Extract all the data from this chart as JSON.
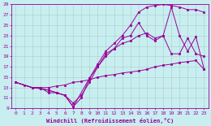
{
  "xlabel": "Windchill (Refroidissement éolien,°C)",
  "background_color": "#c8eef0",
  "line_color": "#990099",
  "grid_color": "#aacccc",
  "xlim": [
    -0.5,
    23.5
  ],
  "ylim": [
    9,
    29
  ],
  "xticks": [
    0,
    1,
    2,
    3,
    4,
    5,
    6,
    7,
    8,
    9,
    10,
    11,
    12,
    13,
    14,
    15,
    16,
    17,
    18,
    19,
    20,
    21,
    22,
    23
  ],
  "yticks": [
    9,
    11,
    13,
    15,
    17,
    19,
    21,
    23,
    25,
    27,
    29
  ],
  "line1_x": [
    0,
    1,
    2,
    3,
    4,
    5,
    6,
    7,
    8,
    9,
    10,
    11,
    12,
    13,
    14,
    15,
    16,
    17,
    18,
    19,
    20,
    21,
    22,
    23
  ],
  "line1_y": [
    14,
    13.5,
    13.0,
    13.0,
    13.0,
    13.3,
    13.5,
    14.0,
    14.2,
    14.5,
    15.0,
    15.3,
    15.5,
    15.8,
    16.0,
    16.2,
    16.5,
    17.0,
    17.3,
    17.5,
    17.8,
    18.0,
    18.2,
    16.5
  ],
  "line2_x": [
    0,
    2,
    3,
    4,
    5,
    6,
    7,
    8,
    9,
    10,
    11,
    12,
    13,
    14,
    15,
    16,
    17,
    18,
    19,
    20,
    21,
    22,
    23
  ],
  "line2_y": [
    14,
    13.0,
    13.0,
    12.0,
    12.0,
    11.5,
    10.0,
    11.5,
    14.0,
    17.0,
    19.0,
    20.5,
    21.5,
    22.0,
    23.0,
    23.5,
    22.5,
    23.0,
    19.5,
    19.5,
    22.5,
    19.5,
    19.0
  ],
  "line3_x": [
    0,
    2,
    3,
    4,
    5,
    6,
    7,
    8,
    9,
    10,
    11,
    12,
    13,
    14,
    15,
    16,
    17,
    18,
    19,
    20,
    21,
    22,
    23
  ],
  "line3_y": [
    14,
    13.0,
    12.8,
    12.5,
    12.0,
    11.5,
    9.3,
    11.0,
    14.8,
    17.0,
    19.5,
    20.5,
    22.5,
    23.0,
    25.5,
    23.0,
    22.0,
    23.0,
    28.5,
    23.0,
    20.0,
    22.8,
    16.5
  ],
  "line4_x": [
    0,
    2,
    3,
    4,
    5,
    6,
    7,
    9,
    10,
    11,
    12,
    13,
    14,
    15,
    16,
    17,
    18,
    19,
    20,
    21,
    22,
    23
  ],
  "line4_y": [
    14,
    13.0,
    12.8,
    12.5,
    12.0,
    11.5,
    9.3,
    14.8,
    17.5,
    20.0,
    21.5,
    23.0,
    25.0,
    27.5,
    28.5,
    28.8,
    29.0,
    28.8,
    28.5,
    28.0,
    28.0,
    27.5
  ]
}
